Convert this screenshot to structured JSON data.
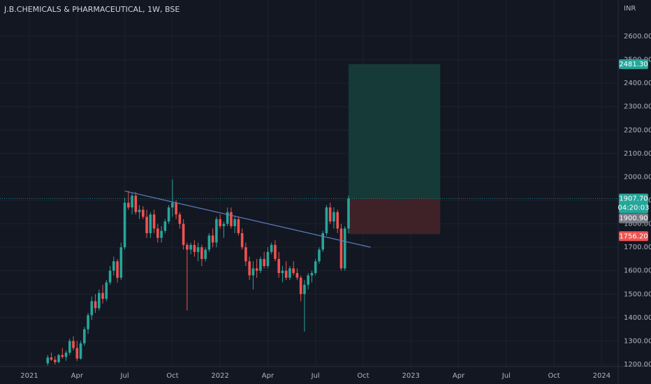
{
  "chart_data": {
    "type": "candlestick",
    "title": "J.B.CHEMICALS & PHARMACEUTICAL, 1W, BSE",
    "currency": "INR",
    "up_color": "#26a69a",
    "down_color": "#ef5350",
    "x": [
      5,
      6,
      7,
      8,
      9,
      10,
      11,
      12,
      13,
      14,
      15,
      16,
      17,
      18,
      19,
      20,
      21,
      22,
      23,
      24,
      25,
      26,
      27,
      28,
      29,
      30,
      31,
      32,
      33,
      34,
      35,
      36,
      37,
      38,
      39,
      40,
      41,
      42,
      43,
      44,
      45,
      46,
      47,
      48,
      49,
      50,
      51,
      52,
      53,
      54,
      55,
      56,
      57,
      58,
      59,
      60,
      61,
      62,
      63,
      64,
      65,
      66,
      67,
      68,
      69,
      70,
      71,
      72,
      73,
      74,
      75,
      76,
      77,
      78,
      79,
      80,
      81,
      82,
      83,
      84,
      85,
      86,
      87
    ],
    "open": [
      1205,
      1230,
      1220,
      1210,
      1240,
      1232,
      1250,
      1300,
      1270,
      1225,
      1290,
      1350,
      1410,
      1470,
      1440,
      1505,
      1480,
      1550,
      1600,
      1640,
      1570,
      1700,
      1890,
      1870,
      1920,
      1850,
      1860,
      1830,
      1760,
      1840,
      1780,
      1740,
      1770,
      1810,
      1870,
      1890,
      1840,
      1800,
      1710,
      1690,
      1710,
      1680,
      1700,
      1650,
      1690,
      1750,
      1720,
      1820,
      1790,
      1800,
      1850,
      1790,
      1820,
      1760,
      1700,
      1640,
      1580,
      1610,
      1600,
      1650,
      1620,
      1680,
      1710,
      1650,
      1590,
      1600,
      1570,
      1610,
      1590,
      1570,
      1500,
      1540,
      1580,
      1590,
      1640,
      1690,
      1760,
      1870,
      1810,
      1850,
      1780,
      1610,
      1780
    ],
    "high": [
      1240,
      1250,
      1235,
      1245,
      1270,
      1260,
      1310,
      1320,
      1300,
      1300,
      1360,
      1420,
      1490,
      1500,
      1520,
      1540,
      1560,
      1620,
      1660,
      1650,
      1720,
      1910,
      1940,
      1930,
      1935,
      1880,
      1875,
      1860,
      1850,
      1860,
      1800,
      1790,
      1820,
      1880,
      1990,
      1900,
      1850,
      1820,
      1720,
      1720,
      1730,
      1720,
      1710,
      1700,
      1760,
      1780,
      1830,
      1840,
      1810,
      1870,
      1870,
      1830,
      1830,
      1780,
      1720,
      1660,
      1640,
      1650,
      1660,
      1680,
      1700,
      1720,
      1730,
      1680,
      1620,
      1640,
      1620,
      1640,
      1610,
      1580,
      1560,
      1590,
      1600,
      1650,
      1700,
      1770,
      1880,
      1890,
      1870,
      1860,
      1800,
      1790,
      1920
    ],
    "low": [
      1195,
      1215,
      1200,
      1205,
      1225,
      1215,
      1240,
      1260,
      1215,
      1220,
      1280,
      1330,
      1390,
      1420,
      1430,
      1460,
      1470,
      1540,
      1580,
      1550,
      1560,
      1690,
      1860,
      1840,
      1840,
      1820,
      1820,
      1740,
      1740,
      1760,
      1720,
      1720,
      1760,
      1800,
      1830,
      1820,
      1780,
      1690,
      1430,
      1670,
      1660,
      1640,
      1620,
      1640,
      1680,
      1700,
      1700,
      1780,
      1740,
      1790,
      1780,
      1760,
      1750,
      1690,
      1620,
      1560,
      1520,
      1570,
      1590,
      1610,
      1610,
      1670,
      1640,
      1570,
      1550,
      1560,
      1560,
      1580,
      1560,
      1470,
      1340,
      1520,
      1550,
      1580,
      1630,
      1680,
      1750,
      1800,
      1780,
      1760,
      1600,
      1600,
      1760
    ],
    "close": [
      1230,
      1220,
      1210,
      1240,
      1232,
      1250,
      1300,
      1270,
      1225,
      1290,
      1350,
      1410,
      1470,
      1440,
      1505,
      1480,
      1550,
      1600,
      1640,
      1570,
      1700,
      1890,
      1870,
      1920,
      1850,
      1860,
      1830,
      1760,
      1840,
      1780,
      1740,
      1770,
      1810,
      1870,
      1890,
      1840,
      1800,
      1710,
      1690,
      1710,
      1680,
      1700,
      1650,
      1690,
      1750,
      1720,
      1820,
      1790,
      1800,
      1850,
      1790,
      1820,
      1760,
      1700,
      1640,
      1580,
      1610,
      1600,
      1650,
      1620,
      1680,
      1710,
      1650,
      1590,
      1600,
      1570,
      1610,
      1590,
      1570,
      1500,
      1540,
      1580,
      1590,
      1640,
      1690,
      1760,
      1870,
      1810,
      1850,
      1780,
      1610,
      1780,
      1907.7
    ],
    "xlim": [
      -8,
      160.5
    ],
    "xticks": [
      {
        "value": 0,
        "label": "2021"
      },
      {
        "value": 13,
        "label": "Apr"
      },
      {
        "value": 26,
        "label": "Jul"
      },
      {
        "value": 39,
        "label": "Oct"
      },
      {
        "value": 52,
        "label": "2022"
      },
      {
        "value": 65,
        "label": "Apr"
      },
      {
        "value": 78,
        "label": "Jul"
      },
      {
        "value": 91,
        "label": "Oct"
      },
      {
        "value": 104,
        "label": "2023"
      },
      {
        "value": 117,
        "label": "Apr"
      },
      {
        "value": 130,
        "label": "Jul"
      },
      {
        "value": 143,
        "label": "Oct"
      },
      {
        "value": 156,
        "label": "2024"
      }
    ],
    "ylim": [
      1191,
      2755
    ],
    "yticks": [
      {
        "value": 1200,
        "label": "1200.00"
      },
      {
        "value": 1300,
        "label": "1300.00"
      },
      {
        "value": 1400,
        "label": "1400.00"
      },
      {
        "value": 1500,
        "label": "1500.00"
      },
      {
        "value": 1600,
        "label": "1600.00"
      },
      {
        "value": 1700,
        "label": "1700.00"
      },
      {
        "value": 1800,
        "label": "1800.00"
      },
      {
        "value": 1900,
        "label": "1900.00"
      },
      {
        "value": 2000,
        "label": "2000.00"
      },
      {
        "value": 2100,
        "label": "2100.00"
      },
      {
        "value": 2200,
        "label": "2200.00"
      },
      {
        "value": 2300,
        "label": "2300.00"
      },
      {
        "value": 2400,
        "label": "2400.00"
      },
      {
        "value": 2500,
        "label": "2500.00"
      },
      {
        "value": 2600,
        "label": "2600.00"
      }
    ],
    "grid": true,
    "trendline": {
      "x": [
        26,
        93
      ],
      "y": [
        1940,
        1700
      ],
      "color": "#5b7fbf"
    },
    "position": {
      "x": [
        87,
        112
      ],
      "target": {
        "value": 2481.3,
        "label": "2481.30"
      },
      "stop": {
        "value": 1756.2,
        "label": "1756.20"
      },
      "profit_color": "#153a38",
      "loss_color": "#3e2228"
    },
    "last_price": {
      "value": 1907.7,
      "label": "1907.70",
      "countdown": "04:20:03"
    },
    "prev_close": {
      "value": 1900.9,
      "label": "1900.90"
    }
  }
}
